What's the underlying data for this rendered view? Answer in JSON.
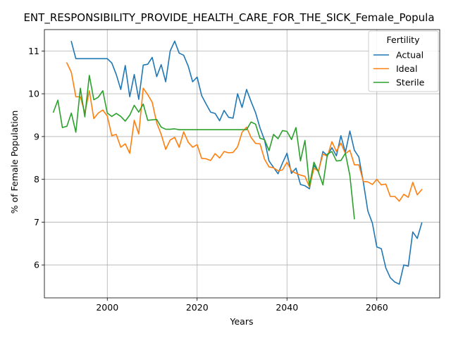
{
  "chart_data": {
    "type": "line",
    "title": "ENT_RESPONSIBILITY_PROVIDE_HEALTH_CARE_FOR_THE_SICK_Female_Popula",
    "xlabel": "Years",
    "ylabel": "% of Female Population",
    "xlim": [
      1986,
      2074
    ],
    "ylim": [
      5.23,
      11.5
    ],
    "xticks": [
      2000,
      2020,
      2040,
      2060
    ],
    "yticks": [
      6,
      7,
      8,
      9,
      10,
      11
    ],
    "grid": true,
    "legend": {
      "title": "Fertility",
      "placement": "top-right"
    },
    "series": [
      {
        "name": "Actual",
        "color": "#1f77b4",
        "points": [
          [
            1992,
            11.22
          ],
          [
            1993,
            10.82
          ],
          [
            1994,
            10.82
          ],
          [
            1995,
            10.82
          ],
          [
            1996,
            10.82
          ],
          [
            1997,
            10.82
          ],
          [
            1998,
            10.82
          ],
          [
            1999,
            10.82
          ],
          [
            2000,
            10.82
          ],
          [
            2001,
            10.72
          ],
          [
            2002,
            10.45
          ],
          [
            2003,
            10.1
          ],
          [
            2004,
            10.66
          ],
          [
            2005,
            9.93
          ],
          [
            2006,
            10.45
          ],
          [
            2007,
            9.87
          ],
          [
            2008,
            10.67
          ],
          [
            2009,
            10.69
          ],
          [
            2010,
            10.85
          ],
          [
            2011,
            10.4
          ],
          [
            2012,
            10.68
          ],
          [
            2013,
            10.28
          ],
          [
            2014,
            11.0
          ],
          [
            2015,
            11.23
          ],
          [
            2016,
            10.95
          ],
          [
            2017,
            10.9
          ],
          [
            2018,
            10.65
          ],
          [
            2019,
            10.28
          ],
          [
            2020,
            10.39
          ],
          [
            2021,
            9.96
          ],
          [
            2022,
            9.76
          ],
          [
            2023,
            9.57
          ],
          [
            2024,
            9.54
          ],
          [
            2025,
            9.37
          ],
          [
            2026,
            9.61
          ],
          [
            2027,
            9.45
          ],
          [
            2028,
            9.43
          ],
          [
            2029,
            10.0
          ],
          [
            2030,
            9.68
          ],
          [
            2031,
            10.1
          ],
          [
            2032,
            9.82
          ],
          [
            2033,
            9.56
          ],
          [
            2034,
            9.2
          ],
          [
            2035,
            8.92
          ],
          [
            2036,
            8.43
          ],
          [
            2037,
            8.28
          ],
          [
            2038,
            8.13
          ],
          [
            2039,
            8.38
          ],
          [
            2040,
            8.61
          ],
          [
            2041,
            8.14
          ],
          [
            2042,
            8.26
          ],
          [
            2043,
            7.88
          ],
          [
            2044,
            7.85
          ],
          [
            2045,
            7.78
          ],
          [
            2046,
            8.33
          ],
          [
            2047,
            8.18
          ],
          [
            2048,
            8.65
          ],
          [
            2049,
            8.55
          ],
          [
            2050,
            8.74
          ],
          [
            2051,
            8.55
          ],
          [
            2052,
            9.02
          ],
          [
            2053,
            8.63
          ],
          [
            2054,
            9.13
          ],
          [
            2055,
            8.68
          ],
          [
            2056,
            8.52
          ],
          [
            2057,
            7.93
          ],
          [
            2058,
            7.26
          ],
          [
            2059,
            6.98
          ],
          [
            2060,
            6.42
          ],
          [
            2061,
            6.38
          ],
          [
            2062,
            5.93
          ],
          [
            2063,
            5.7
          ],
          [
            2064,
            5.6
          ],
          [
            2065,
            5.55
          ],
          [
            2066,
            6.0
          ],
          [
            2067,
            5.97
          ],
          [
            2068,
            6.77
          ],
          [
            2069,
            6.62
          ],
          [
            2070,
            6.98
          ]
        ]
      },
      {
        "name": "Ideal",
        "color": "#ff7f0e",
        "points": [
          [
            1991,
            10.72
          ],
          [
            1992,
            10.5
          ],
          [
            1993,
            9.93
          ],
          [
            1994,
            9.93
          ],
          [
            1995,
            9.55
          ],
          [
            1996,
            10.07
          ],
          [
            1997,
            9.42
          ],
          [
            1998,
            9.55
          ],
          [
            1999,
            9.62
          ],
          [
            2000,
            9.48
          ],
          [
            2001,
            9.02
          ],
          [
            2002,
            9.05
          ],
          [
            2003,
            8.75
          ],
          [
            2004,
            8.83
          ],
          [
            2005,
            8.61
          ],
          [
            2006,
            9.38
          ],
          [
            2007,
            9.06
          ],
          [
            2008,
            10.13
          ],
          [
            2009,
            9.98
          ],
          [
            2010,
            9.8
          ],
          [
            2011,
            9.32
          ],
          [
            2012,
            9.05
          ],
          [
            2013,
            8.7
          ],
          [
            2014,
            8.92
          ],
          [
            2015,
            8.98
          ],
          [
            2016,
            8.75
          ],
          [
            2017,
            9.11
          ],
          [
            2018,
            8.87
          ],
          [
            2019,
            8.75
          ],
          [
            2020,
            8.81
          ],
          [
            2021,
            8.49
          ],
          [
            2022,
            8.48
          ],
          [
            2023,
            8.44
          ],
          [
            2024,
            8.6
          ],
          [
            2025,
            8.5
          ],
          [
            2026,
            8.65
          ],
          [
            2027,
            8.62
          ],
          [
            2028,
            8.63
          ],
          [
            2029,
            8.76
          ],
          [
            2030,
            9.1
          ],
          [
            2031,
            9.22
          ],
          [
            2032,
            8.98
          ],
          [
            2033,
            8.84
          ],
          [
            2034,
            8.83
          ],
          [
            2035,
            8.47
          ],
          [
            2036,
            8.29
          ],
          [
            2037,
            8.27
          ],
          [
            2038,
            8.2
          ],
          [
            2039,
            8.22
          ],
          [
            2040,
            8.4
          ],
          [
            2041,
            8.2
          ],
          [
            2042,
            8.14
          ],
          [
            2043,
            8.1
          ],
          [
            2044,
            8.07
          ],
          [
            2045,
            7.82
          ],
          [
            2046,
            8.26
          ],
          [
            2047,
            8.19
          ],
          [
            2048,
            8.59
          ],
          [
            2049,
            8.54
          ],
          [
            2050,
            8.88
          ],
          [
            2051,
            8.65
          ],
          [
            2052,
            8.85
          ],
          [
            2053,
            8.6
          ],
          [
            2054,
            8.68
          ],
          [
            2055,
            8.34
          ],
          [
            2056,
            8.34
          ],
          [
            2057,
            7.95
          ],
          [
            2058,
            7.94
          ],
          [
            2059,
            7.88
          ],
          [
            2060,
            8.0
          ],
          [
            2061,
            7.87
          ],
          [
            2062,
            7.89
          ],
          [
            2063,
            7.6
          ],
          [
            2064,
            7.6
          ],
          [
            2065,
            7.49
          ],
          [
            2066,
            7.65
          ],
          [
            2067,
            7.58
          ],
          [
            2068,
            7.93
          ],
          [
            2069,
            7.64
          ],
          [
            2070,
            7.76
          ]
        ]
      },
      {
        "name": "Sterile",
        "color": "#2ca02c",
        "points": [
          [
            1988,
            9.57
          ],
          [
            1989,
            9.85
          ],
          [
            1990,
            9.21
          ],
          [
            1991,
            9.24
          ],
          [
            1992,
            9.55
          ],
          [
            1993,
            9.1
          ],
          [
            1994,
            10.13
          ],
          [
            1995,
            9.46
          ],
          [
            1996,
            10.43
          ],
          [
            1997,
            9.86
          ],
          [
            1998,
            9.92
          ],
          [
            1999,
            10.07
          ],
          [
            2000,
            9.55
          ],
          [
            2001,
            9.47
          ],
          [
            2002,
            9.54
          ],
          [
            2003,
            9.47
          ],
          [
            2004,
            9.36
          ],
          [
            2005,
            9.5
          ],
          [
            2006,
            9.73
          ],
          [
            2007,
            9.57
          ],
          [
            2008,
            9.76
          ],
          [
            2009,
            9.38
          ],
          [
            2010,
            9.39
          ],
          [
            2011,
            9.4
          ],
          [
            2012,
            9.22
          ],
          [
            2013,
            9.17
          ],
          [
            2014,
            9.17
          ],
          [
            2015,
            9.18
          ],
          [
            2016,
            9.16
          ],
          [
            2017,
            9.16
          ],
          [
            2018,
            9.16
          ],
          [
            2019,
            9.16
          ],
          [
            2020,
            9.16
          ],
          [
            2021,
            9.16
          ],
          [
            2022,
            9.16
          ],
          [
            2023,
            9.16
          ],
          [
            2024,
            9.16
          ],
          [
            2025,
            9.16
          ],
          [
            2026,
            9.16
          ],
          [
            2027,
            9.16
          ],
          [
            2028,
            9.16
          ],
          [
            2029,
            9.16
          ],
          [
            2030,
            9.16
          ],
          [
            2031,
            9.16
          ],
          [
            2032,
            9.34
          ],
          [
            2033,
            9.29
          ],
          [
            2034,
            8.96
          ],
          [
            2035,
            8.93
          ],
          [
            2036,
            8.67
          ],
          [
            2037,
            9.05
          ],
          [
            2038,
            8.95
          ],
          [
            2039,
            9.14
          ],
          [
            2040,
            9.12
          ],
          [
            2041,
            8.93
          ],
          [
            2042,
            9.21
          ],
          [
            2043,
            8.43
          ],
          [
            2044,
            8.91
          ],
          [
            2045,
            7.85
          ],
          [
            2046,
            8.4
          ],
          [
            2047,
            8.17
          ],
          [
            2048,
            7.87
          ],
          [
            2049,
            8.59
          ],
          [
            2050,
            8.65
          ],
          [
            2051,
            8.43
          ],
          [
            2052,
            8.44
          ],
          [
            2053,
            8.61
          ],
          [
            2054,
            8.09
          ],
          [
            2055,
            7.08
          ]
        ]
      }
    ]
  }
}
